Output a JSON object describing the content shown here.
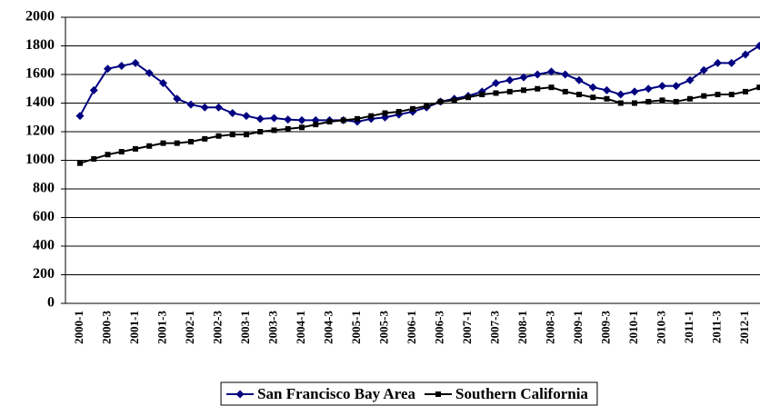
{
  "chart_data": {
    "type": "line",
    "categories": [
      "2000-1",
      null,
      "2000-3",
      null,
      "2001-1",
      null,
      "2001-3",
      null,
      "2002-1",
      null,
      "2002-3",
      null,
      "2003-1",
      null,
      "2003-3",
      null,
      "2004-1",
      null,
      "2004-3",
      null,
      "2005-1",
      null,
      "2005-3",
      null,
      "2006-1",
      null,
      "2006-3",
      null,
      "2007-1",
      null,
      "2007-3",
      null,
      "2008-1",
      null,
      "2008-3",
      null,
      "2009-1",
      null,
      "2009-3",
      null,
      "2010-1",
      null,
      "2010-3",
      null,
      "2011-1",
      null,
      "2011-3",
      null,
      "2012-1",
      null
    ],
    "series": [
      {
        "name": "San Francisco Bay Area",
        "color": "#000080",
        "marker": "diamond",
        "values": [
          1310,
          1490,
          1640,
          1660,
          1680,
          1610,
          1540,
          1430,
          1390,
          1370,
          1370,
          1330,
          1310,
          1290,
          1295,
          1285,
          1280,
          1280,
          1280,
          1280,
          1270,
          1290,
          1300,
          1320,
          1340,
          1370,
          1410,
          1430,
          1450,
          1480,
          1540,
          1560,
          1580,
          1600,
          1620,
          1600,
          1560,
          1510,
          1490,
          1460,
          1480,
          1500,
          1520,
          1520,
          1560,
          1630,
          1680,
          1680,
          1740,
          1800
        ]
      },
      {
        "name": "Southern California",
        "color": "#000000",
        "marker": "square",
        "values": [
          980,
          1010,
          1040,
          1060,
          1080,
          1100,
          1120,
          1120,
          1130,
          1150,
          1170,
          1180,
          1180,
          1200,
          1210,
          1220,
          1230,
          1250,
          1270,
          1280,
          1290,
          1310,
          1330,
          1340,
          1360,
          1380,
          1410,
          1420,
          1440,
          1460,
          1470,
          1480,
          1490,
          1500,
          1510,
          1480,
          1460,
          1440,
          1430,
          1400,
          1400,
          1410,
          1420,
          1410,
          1430,
          1450,
          1460,
          1460,
          1480,
          1510
        ]
      }
    ],
    "ylim": [
      0,
      2000
    ],
    "yticks": [
      0,
      200,
      400,
      600,
      800,
      1000,
      1200,
      1400,
      1600,
      1800,
      2000
    ],
    "grid": true,
    "legend": "bottom"
  }
}
